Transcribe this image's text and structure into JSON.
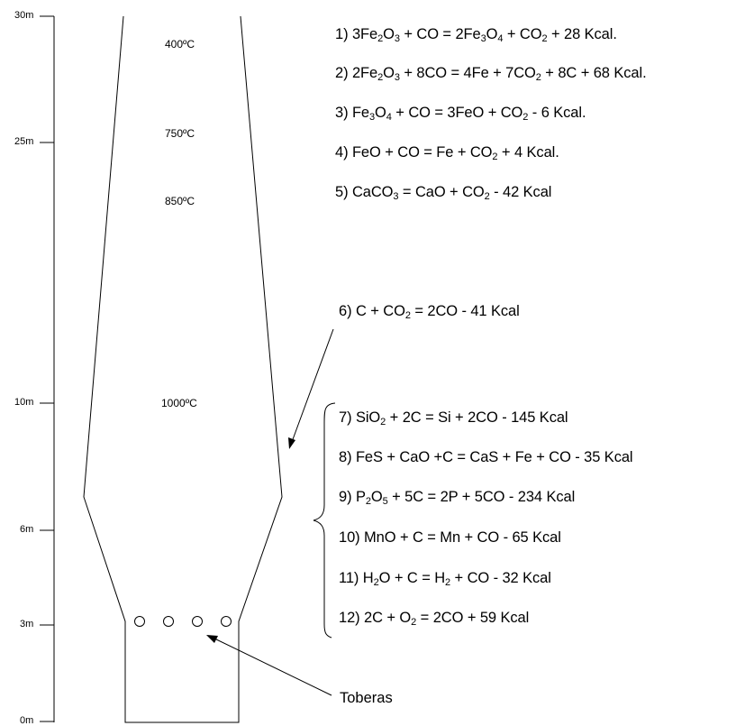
{
  "scale": {
    "ticks": [
      "30m",
      "25m",
      "10m",
      "6m",
      "3m",
      "0m"
    ]
  },
  "temperatures": [
    "400ºC",
    "750ºC",
    "850ºC",
    "1000ºC"
  ],
  "equations": [
    {
      "segments": [
        {
          "t": "1) 3Fe"
        },
        {
          "sub": "2"
        },
        {
          "t": "O"
        },
        {
          "sub": "3"
        },
        {
          "t": " + CO = 2Fe"
        },
        {
          "sub": "3"
        },
        {
          "t": "O"
        },
        {
          "sub": "4"
        },
        {
          "t": " + CO"
        },
        {
          "sub": "2"
        },
        {
          "t": " + 28  Kcal."
        }
      ]
    },
    {
      "segments": [
        {
          "t": "2) 2Fe"
        },
        {
          "sub": "2"
        },
        {
          "t": "O"
        },
        {
          "sub": "3"
        },
        {
          "t": " + 8CO = 4Fe  + 7CO"
        },
        {
          "sub": "2"
        },
        {
          "t": " + 8C + 68  Kcal."
        }
      ]
    },
    {
      "segments": [
        {
          "t": "3) Fe"
        },
        {
          "sub": "3"
        },
        {
          "t": "O"
        },
        {
          "sub": "4"
        },
        {
          "t": " + CO = 3FeO + CO"
        },
        {
          "sub": "2"
        },
        {
          "t": " - 6  Kcal."
        }
      ]
    },
    {
      "segments": [
        {
          "t": "4) FeO + CO = Fe  + CO"
        },
        {
          "sub": "2"
        },
        {
          "t": " + 4  Kcal."
        }
      ]
    },
    {
      "segments": [
        {
          "t": "5) CaCO"
        },
        {
          "sub": "3"
        },
        {
          "t": " = CaO + CO"
        },
        {
          "sub": "2"
        },
        {
          "t": " - 42 Kcal"
        }
      ]
    },
    {
      "segments": [
        {
          "t": "6) C + CO"
        },
        {
          "sub": "2"
        },
        {
          "t": " = 2CO - 41 Kcal"
        }
      ]
    },
    {
      "segments": [
        {
          "t": "7) SiO"
        },
        {
          "sub": "2"
        },
        {
          "t": " + 2C = Si + 2CO - 145 Kcal"
        }
      ]
    },
    {
      "segments": [
        {
          "t": "8) FeS + CaO +C = CaS + Fe + CO - 35 Kcal"
        }
      ]
    },
    {
      "segments": [
        {
          "t": "9) P"
        },
        {
          "sub": "2"
        },
        {
          "t": "O"
        },
        {
          "sub": "5"
        },
        {
          "t": " + 5C = 2P + 5CO - 234 Kcal"
        }
      ]
    },
    {
      "segments": [
        {
          "t": "10) MnO + C = Mn + CO - 65 Kcal"
        }
      ]
    },
    {
      "segments": [
        {
          "t": "11) H"
        },
        {
          "sub": "2"
        },
        {
          "t": "O + C = H"
        },
        {
          "sub": "2"
        },
        {
          "t": " + CO - 32 Kcal"
        }
      ]
    },
    {
      "segments": [
        {
          "t": "12) 2C + O"
        },
        {
          "sub": "2"
        },
        {
          "t": " = 2CO + 59 Kcal"
        }
      ]
    }
  ],
  "toberas_label": "Toberas"
}
